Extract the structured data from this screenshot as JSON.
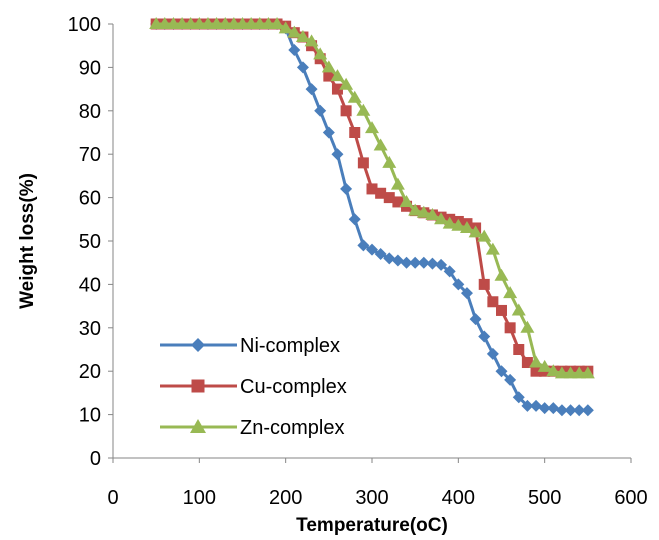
{
  "chart_data": {
    "type": "line",
    "xlabel": "Temperature(oC)",
    "ylabel": "Weight loss(%)",
    "xlim": [
      0,
      600
    ],
    "ylim": [
      0,
      100
    ],
    "xticks": [
      0,
      100,
      200,
      300,
      400,
      500,
      600
    ],
    "yticks": [
      0,
      10,
      20,
      30,
      40,
      50,
      60,
      70,
      80,
      90,
      100
    ],
    "grid": false,
    "legend_position": "bottom-left",
    "series": [
      {
        "name": "Ni-complex",
        "color": "#4a7ebb",
        "marker": "diamond",
        "x": [
          50,
          60,
          70,
          80,
          90,
          100,
          110,
          120,
          130,
          140,
          150,
          160,
          170,
          180,
          190,
          200,
          210,
          220,
          230,
          240,
          250,
          260,
          270,
          280,
          290,
          300,
          310,
          320,
          330,
          340,
          350,
          360,
          370,
          380,
          390,
          400,
          410,
          420,
          430,
          440,
          450,
          460,
          470,
          480,
          490,
          500,
          510,
          520,
          530,
          540,
          550
        ],
        "y": [
          100,
          100,
          100,
          100,
          100,
          100,
          100,
          100,
          100,
          100,
          100,
          100,
          100,
          100,
          100,
          99,
          94,
          90,
          85,
          80,
          75,
          70,
          62,
          55,
          49,
          48,
          47,
          46,
          45.5,
          45,
          45,
          45,
          44.8,
          44.5,
          43,
          40,
          38,
          32,
          28,
          24,
          20,
          18,
          14,
          12,
          12,
          11.5,
          11.5,
          11,
          11,
          11,
          11
        ]
      },
      {
        "name": "Cu-complex",
        "color": "#be4b48",
        "marker": "square",
        "x": [
          50,
          60,
          70,
          80,
          90,
          100,
          110,
          120,
          130,
          140,
          150,
          160,
          170,
          180,
          190,
          200,
          210,
          220,
          230,
          240,
          250,
          260,
          270,
          280,
          290,
          300,
          310,
          320,
          330,
          340,
          350,
          360,
          370,
          380,
          390,
          400,
          410,
          420,
          430,
          440,
          450,
          460,
          470,
          480,
          490,
          500,
          510,
          520,
          530,
          540,
          550
        ],
        "y": [
          100,
          100,
          100,
          100,
          100,
          100,
          100,
          100,
          100,
          100,
          100,
          100,
          100,
          100,
          100,
          99.5,
          98,
          97,
          95,
          92,
          88,
          85,
          80,
          75,
          68,
          62,
          61,
          60,
          59,
          58,
          57,
          56.5,
          56,
          55.5,
          55,
          54.5,
          54,
          53,
          40,
          36,
          34,
          30,
          25,
          22,
          20,
          20,
          20,
          20,
          20,
          20,
          20
        ]
      },
      {
        "name": "Zn-complex",
        "color": "#98b954",
        "marker": "triangle",
        "x": [
          50,
          60,
          70,
          80,
          90,
          100,
          110,
          120,
          130,
          140,
          150,
          160,
          170,
          180,
          190,
          200,
          210,
          220,
          230,
          240,
          250,
          260,
          270,
          280,
          290,
          300,
          310,
          320,
          330,
          340,
          350,
          360,
          370,
          380,
          390,
          400,
          410,
          420,
          430,
          440,
          450,
          460,
          470,
          480,
          490,
          500,
          510,
          520,
          530,
          540,
          550
        ],
        "y": [
          100,
          100,
          100,
          100,
          100,
          100,
          100,
          100,
          100,
          100,
          100,
          100,
          100,
          100,
          100,
          99,
          98,
          97,
          96,
          93,
          90,
          88,
          86,
          83,
          80,
          76,
          72,
          68,
          63,
          59,
          57,
          56.5,
          56,
          55,
          54,
          53.5,
          53,
          52,
          51,
          48,
          42,
          38,
          34,
          30,
          22,
          21,
          20,
          19.5,
          19.5,
          19.5,
          19.5
        ]
      }
    ]
  }
}
